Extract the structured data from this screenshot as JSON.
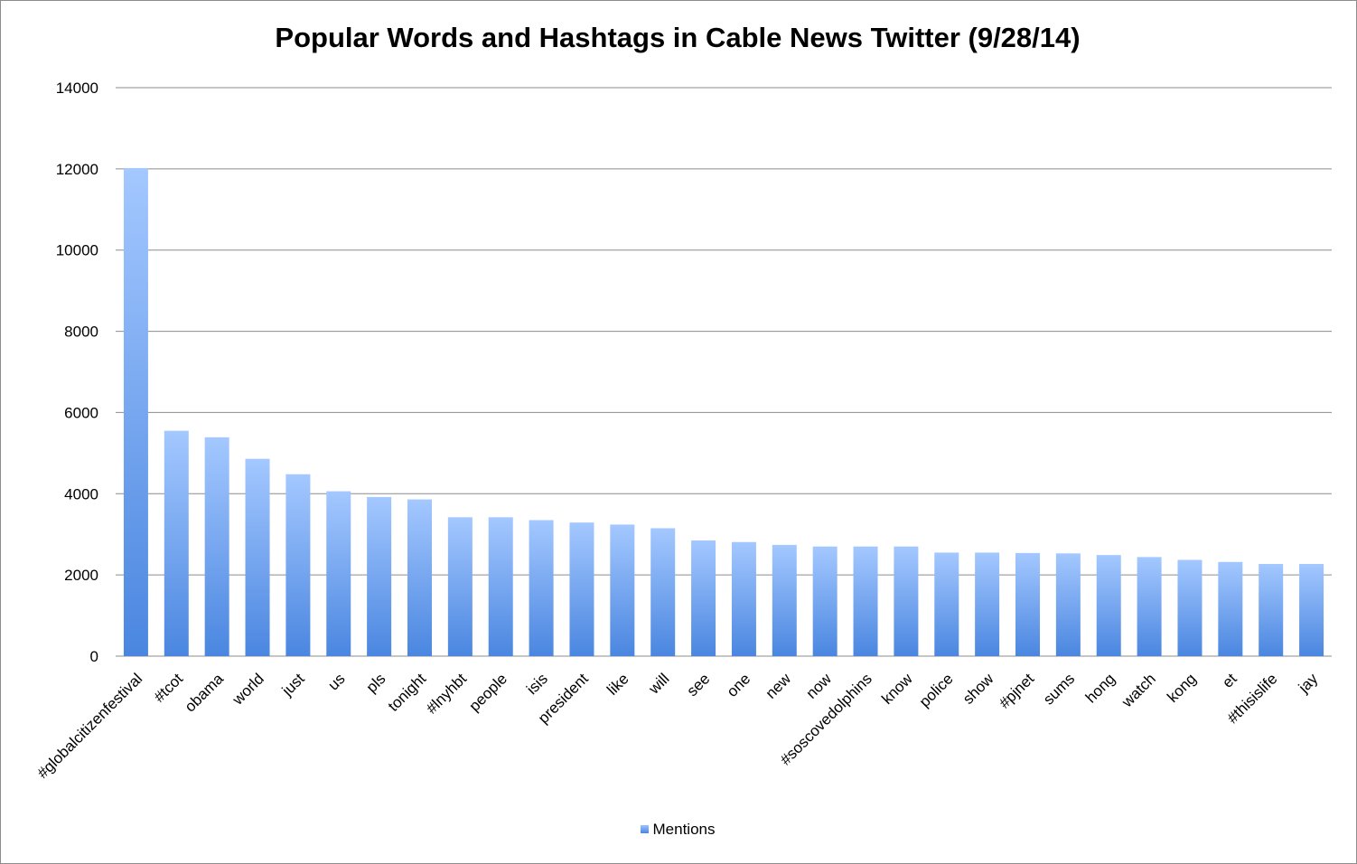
{
  "chart_data": {
    "type": "bar",
    "title": "Popular Words and Hashtags in Cable News Twitter (9/28/14)",
    "xlabel": "",
    "ylabel": "",
    "ylim": [
      0,
      14000
    ],
    "yticks": [
      "0",
      "2000",
      "4000",
      "6000",
      "8000",
      "10000",
      "12000",
      "14000"
    ],
    "grid": true,
    "legend_position": "bottom",
    "categories": [
      "#globalcitizenfestival",
      "#tcot",
      "obama",
      "world",
      "just",
      "us",
      "pls",
      "tonight",
      "#lnyhbt",
      "people",
      "isis",
      "president",
      "like",
      "will",
      "see",
      "one",
      "new",
      "now",
      "#soscovedolphins",
      "know",
      "police",
      "show",
      "#pjnet",
      "sums",
      "hong",
      "watch",
      "kong",
      "et",
      "#thisislife",
      "jay"
    ],
    "series": [
      {
        "name": "Mentions",
        "color": "#5b93e8",
        "values": [
          12020,
          5550,
          5390,
          4860,
          4480,
          4060,
          3920,
          3860,
          3420,
          3420,
          3350,
          3290,
          3240,
          3150,
          2850,
          2810,
          2740,
          2700,
          2700,
          2700,
          2550,
          2550,
          2540,
          2530,
          2490,
          2440,
          2370,
          2320,
          2270,
          2270
        ]
      }
    ]
  }
}
